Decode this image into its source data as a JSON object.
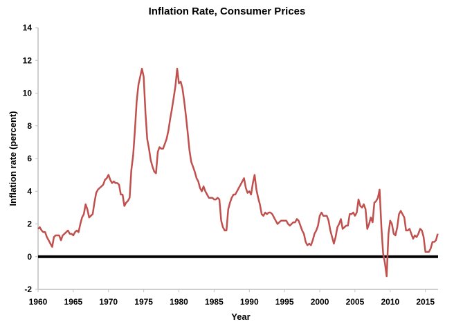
{
  "chart_data": {
    "type": "line",
    "title": "Inflation Rate, Consumer Prices",
    "xlabel": "Year",
    "ylabel": "Inflation rate (percent)",
    "xlim": [
      1960,
      2016.8
    ],
    "ylim": [
      -2,
      14
    ],
    "x_ticks": [
      "1960",
      "1965",
      "1970",
      "1975",
      "1980",
      "1985",
      "1990",
      "1995",
      "2000",
      "2005",
      "2010",
      "2015"
    ],
    "y_ticks": [
      "-2",
      "0",
      "2",
      "4",
      "6",
      "8",
      "10",
      "12",
      "14"
    ],
    "grid": false,
    "zero_line": true,
    "colors": {
      "series": "#c0504d",
      "zero_line": "#000000",
      "axis": "#bfbfbf"
    },
    "series": [
      {
        "start_year": 1960,
        "step_years": 0.25,
        "values": [
          1.7,
          1.8,
          1.6,
          1.5,
          1.5,
          1.2,
          1.0,
          0.8,
          0.6,
          1.2,
          1.3,
          1.3,
          1.3,
          1.0,
          1.3,
          1.4,
          1.5,
          1.6,
          1.4,
          1.4,
          1.3,
          1.5,
          1.6,
          1.5,
          2.0,
          2.4,
          2.6,
          3.2,
          2.9,
          2.4,
          2.5,
          2.6,
          3.3,
          3.9,
          4.1,
          4.2,
          4.3,
          4.4,
          4.7,
          4.8,
          5.0,
          4.7,
          4.5,
          4.6,
          4.5,
          4.5,
          4.4,
          3.8,
          3.8,
          3.1,
          3.3,
          3.4,
          3.6,
          5.3,
          6.2,
          7.7,
          9.5,
          10.5,
          11.0,
          11.5,
          11.0,
          8.8,
          7.2,
          6.6,
          5.9,
          5.5,
          5.2,
          5.1,
          6.4,
          6.7,
          6.6,
          6.6,
          6.9,
          7.2,
          7.7,
          8.4,
          9.0,
          9.7,
          10.4,
          11.5,
          10.6,
          10.7,
          10.3,
          9.5,
          8.6,
          7.6,
          6.5,
          5.8,
          5.5,
          5.2,
          4.8,
          4.6,
          4.2,
          4.0,
          4.3,
          4.0,
          3.8,
          3.6,
          3.6,
          3.6,
          3.5,
          3.5,
          3.6,
          3.5,
          2.2,
          1.8,
          1.6,
          1.6,
          2.9,
          3.3,
          3.6,
          3.8,
          3.8,
          4.0,
          4.2,
          4.4,
          4.6,
          4.8,
          4.2,
          3.9,
          4.0,
          3.8,
          4.5,
          5.0,
          4.1,
          3.6,
          3.2,
          2.6,
          2.5,
          2.7,
          2.6,
          2.7,
          2.7,
          2.6,
          2.4,
          2.2,
          2.0,
          2.1,
          2.2,
          2.2,
          2.2,
          2.2,
          2.0,
          1.9,
          2.0,
          2.1,
          2.1,
          2.3,
          2.2,
          1.9,
          1.6,
          1.4,
          0.9,
          0.7,
          0.8,
          0.7,
          1.0,
          1.4,
          1.6,
          1.9,
          2.5,
          2.7,
          2.5,
          2.5,
          2.5,
          2.2,
          1.6,
          1.2,
          0.8,
          1.2,
          1.8,
          2.0,
          2.3,
          1.7,
          1.8,
          1.9,
          1.9,
          2.6,
          2.6,
          2.7,
          2.5,
          2.7,
          3.5,
          3.1,
          3.0,
          3.2,
          2.9,
          1.7,
          2.0,
          2.4,
          2.1,
          3.3,
          3.4,
          3.6,
          4.1,
          1.8,
          0.2,
          -0.4,
          -1.2,
          1.4,
          2.2,
          2.0,
          1.4,
          1.3,
          1.8,
          2.6,
          2.8,
          2.6,
          2.4,
          1.6,
          1.6,
          1.7,
          1.4,
          1.1,
          1.3,
          1.2,
          1.4,
          1.7,
          1.6,
          1.2,
          0.3,
          0.3,
          0.3,
          0.5,
          0.9,
          0.9,
          1.0,
          1.4
        ]
      }
    ]
  }
}
